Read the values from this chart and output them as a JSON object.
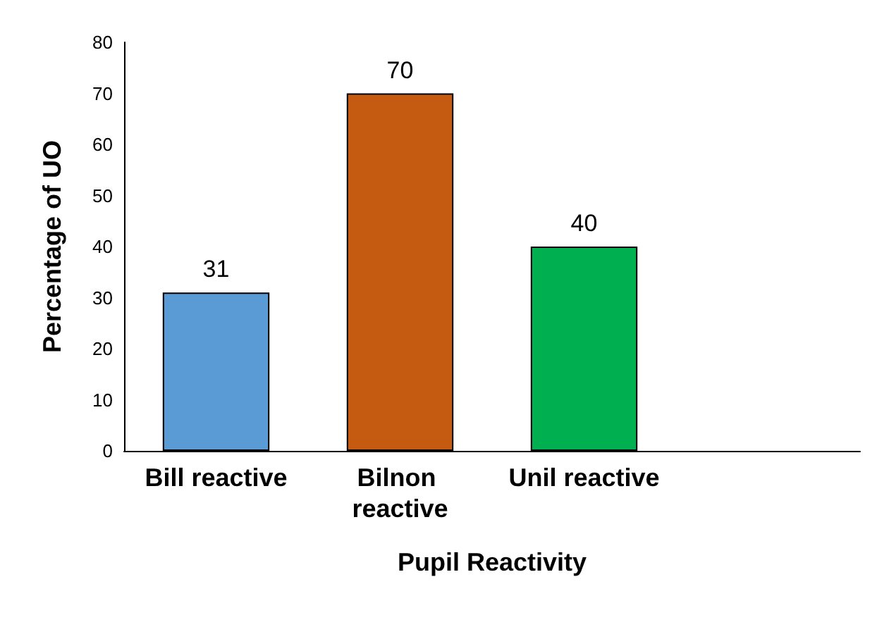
{
  "chart_data": {
    "type": "bar",
    "xlabel": "Pupil Reactivity",
    "ylabel": "Percentage of UO",
    "categories": [
      "Bill reactive",
      "Bilnon reactive",
      "Unil reactive",
      null
    ],
    "values": [
      31,
      70,
      40,
      null
    ],
    "colors": [
      "#5b9bd5",
      "#c55a11",
      "#00b050",
      "#000000"
    ],
    "ylim": [
      0,
      80
    ],
    "yticks": [
      0,
      10,
      20,
      30,
      40,
      50,
      60,
      70,
      80
    ],
    "grid": false,
    "data_labels": true
  }
}
